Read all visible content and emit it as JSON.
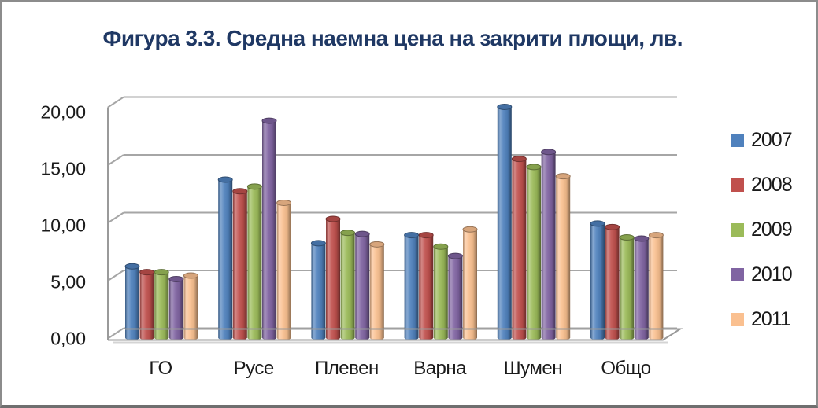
{
  "title": {
    "text": "Фигура 3.3. Средна наемна цена на закрити площи, лв.",
    "color": "#1F3864"
  },
  "chart_data": {
    "type": "bar",
    "style": "3d-cylinder-clustered",
    "title": "Фигура 3.3. Средна наемна цена на закрити площи, лв.",
    "xlabel": "",
    "ylabel": "",
    "categories": [
      "ГО",
      "Русе",
      "Плевен",
      "Варна",
      "Шумен",
      "Общо"
    ],
    "series": [
      {
        "name": "2007",
        "color": "#4F81BD",
        "values": [
          6.0,
          13.5,
          8.0,
          8.7,
          19.8,
          9.7
        ]
      },
      {
        "name": "2008",
        "color": "#C0504D",
        "values": [
          5.5,
          12.5,
          10.1,
          8.7,
          15.3,
          9.4
        ]
      },
      {
        "name": "2009",
        "color": "#9BBB59",
        "values": [
          5.5,
          12.9,
          8.9,
          7.7,
          14.6,
          8.5
        ]
      },
      {
        "name": "2010",
        "color": "#8064A2",
        "values": [
          4.9,
          18.6,
          8.8,
          6.9,
          15.9,
          8.4
        ]
      },
      {
        "name": "2011",
        "color": "#FAC090",
        "values": [
          5.2,
          11.5,
          7.9,
          9.2,
          13.8,
          8.7
        ]
      }
    ],
    "ylim": [
      0,
      20
    ],
    "ytick_step": 5,
    "yticks": [
      "0,00",
      "5,00",
      "10,00",
      "15,00",
      "20,00"
    ],
    "grid": true,
    "gridline_color": "#A6A6A6",
    "axis_text_color": "#1a1a1a",
    "legend_position": "right"
  }
}
